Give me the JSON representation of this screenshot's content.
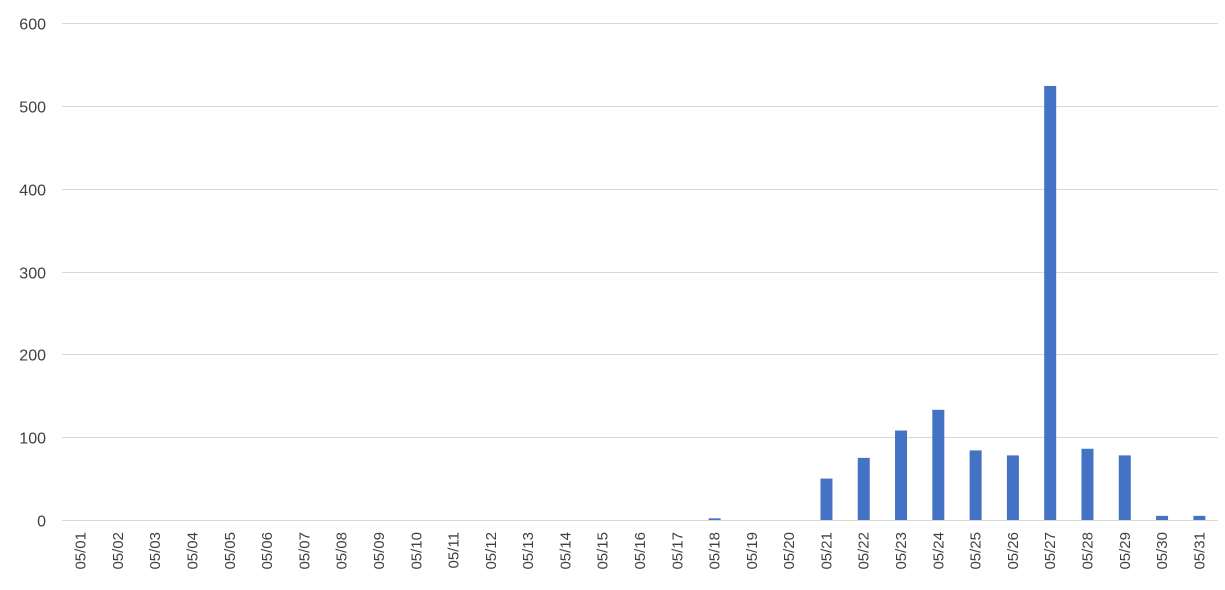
{
  "chart_data": {
    "type": "bar",
    "title": "",
    "xlabel": "",
    "ylabel": "",
    "ylim": [
      0,
      600
    ],
    "yticks": [
      0,
      100,
      200,
      300,
      400,
      500,
      600
    ],
    "grid": true,
    "legend": "none",
    "bar_color": "#4472c4",
    "categories": [
      "05/01",
      "05/02",
      "05/03",
      "05/04",
      "05/05",
      "05/06",
      "05/07",
      "05/08",
      "05/09",
      "05/10",
      "05/11",
      "05/12",
      "05/13",
      "05/14",
      "05/15",
      "05/16",
      "05/17",
      "05/18",
      "05/19",
      "05/20",
      "05/21",
      "05/22",
      "05/23",
      "05/24",
      "05/25",
      "05/26",
      "05/27",
      "05/28",
      "05/29",
      "05/30",
      "05/31"
    ],
    "values": [
      0,
      0,
      0,
      0,
      0,
      0,
      0,
      0,
      0,
      0,
      0,
      0,
      0,
      0,
      0,
      0,
      0,
      2,
      0,
      0,
      50,
      75,
      108,
      133,
      84,
      78,
      524,
      86,
      78,
      5,
      5
    ]
  }
}
